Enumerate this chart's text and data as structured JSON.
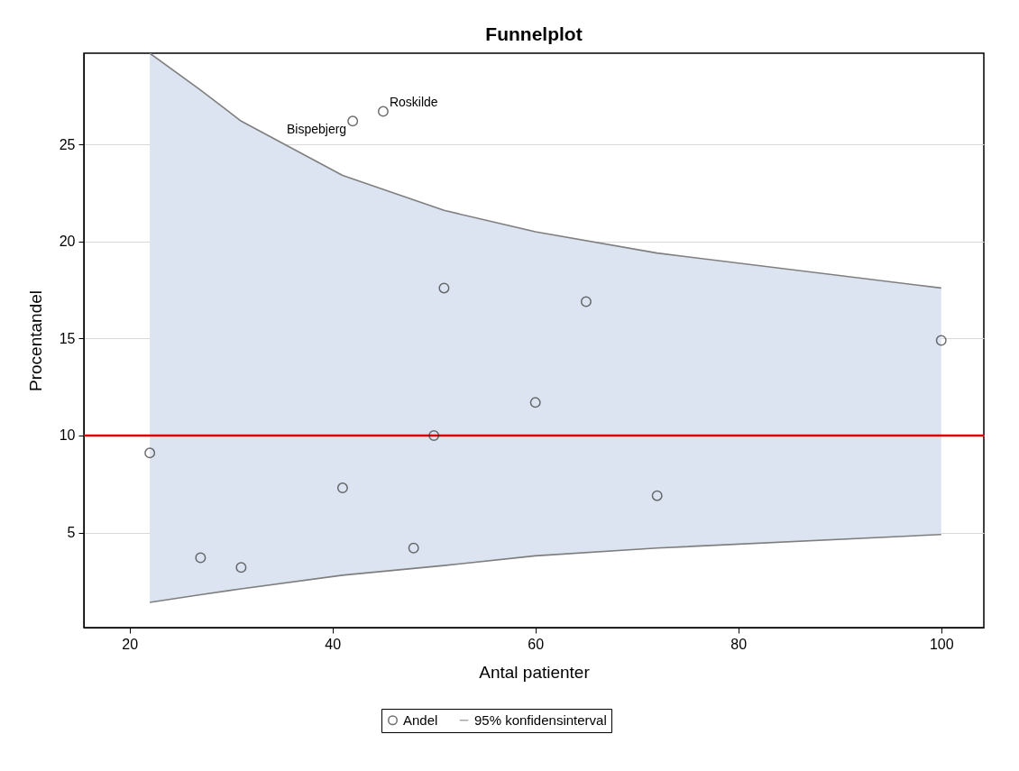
{
  "chart_data": {
    "type": "scatter",
    "title": "Funnelplot",
    "xlabel": "Antal patienter",
    "ylabel": "Procentandel",
    "xlim": [
      15.5,
      104.2
    ],
    "xticks": [
      20,
      40,
      60,
      80,
      100
    ],
    "ylim": [
      0.1,
      29.7
    ],
    "yticks": [
      5,
      10,
      15,
      20,
      25
    ],
    "grid": "y",
    "legend": "bottom",
    "marker": "circle",
    "series": [
      {
        "name": "Andel",
        "color": "#333333",
        "x": [
          22,
          27,
          31,
          41,
          42,
          45,
          48,
          50,
          51,
          60,
          65,
          72,
          100
        ],
        "values": [
          9.1,
          3.7,
          3.2,
          7.3,
          26.2,
          26.7,
          4.2,
          10.0,
          17.6,
          11.7,
          16.9,
          6.9,
          14.9
        ]
      },
      {
        "name": "95% konfidensinterval",
        "type": "line",
        "marker": "none",
        "color": "#7f7f7f",
        "x": [
          22,
          27,
          31,
          41,
          51,
          60,
          72,
          100
        ],
        "values": [
          29.7,
          27.8,
          26.2,
          23.4,
          21.6,
          20.5,
          19.4,
          17.6
        ],
        "lower": [
          1.4,
          1.8,
          2.1,
          2.8,
          3.3,
          3.8,
          4.2,
          4.9
        ],
        "upper": [
          29.7,
          27.8,
          26.2,
          23.4,
          21.6,
          20.5,
          19.4,
          17.6
        ]
      },
      {
        "type": "line",
        "marker": "none",
        "color": "#7e7e7e",
        "x": [
          22,
          27,
          31,
          41,
          51,
          60,
          72,
          100
        ],
        "values": [
          1.4,
          1.8,
          2.1,
          2.8,
          3.3,
          3.8,
          4.2,
          4.9
        ]
      }
    ],
    "ref_lines": [
      {
        "axis": "y",
        "value": 10,
        "color": "#e00000"
      }
    ],
    "annotations": [
      {
        "text": "Bispebjerg",
        "x": 42,
        "y": 26.2
      },
      {
        "text": "Roskilde",
        "x": 45,
        "y": 26.7
      }
    ]
  }
}
